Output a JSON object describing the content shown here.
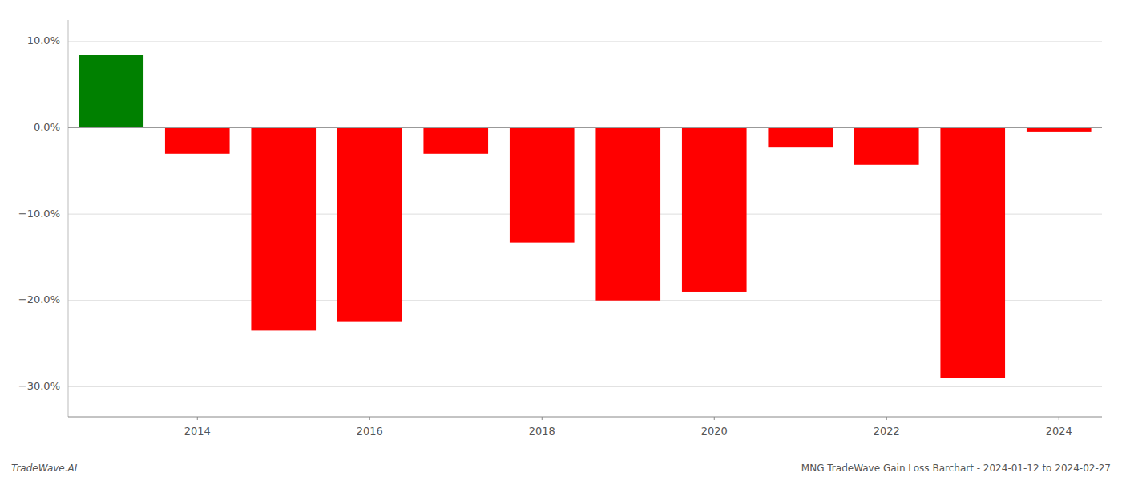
{
  "chart_data": {
    "type": "bar",
    "categories": [
      null,
      "2014",
      null,
      "2016",
      null,
      "2018",
      null,
      "2020",
      null,
      "2022",
      null,
      "2024"
    ],
    "values": [
      0.085,
      -0.03,
      -0.235,
      -0.225,
      -0.03,
      -0.133,
      -0.2,
      -0.19,
      -0.022,
      -0.043,
      -0.29,
      -0.005
    ],
    "colors": [
      "#008000",
      "#ff0000",
      "#ff0000",
      "#ff0000",
      "#ff0000",
      "#ff0000",
      "#ff0000",
      "#ff0000",
      "#ff0000",
      "#ff0000",
      "#ff0000",
      "#ff0000"
    ],
    "ylim": [
      -0.335,
      0.125
    ],
    "yticks": [
      {
        "value": -0.3,
        "label": "−30.0%"
      },
      {
        "value": -0.2,
        "label": "−20.0%"
      },
      {
        "value": -0.1,
        "label": "−10.0%"
      },
      {
        "value": 0.0,
        "label": "0.0%"
      },
      {
        "value": 0.1,
        "label": "10.0%"
      }
    ],
    "grid": true,
    "annotations": [
      "TradeWave.AI",
      "MNG TradeWave Gain Loss Barchart - 2024-01-12 to 2024-02-27"
    ]
  }
}
